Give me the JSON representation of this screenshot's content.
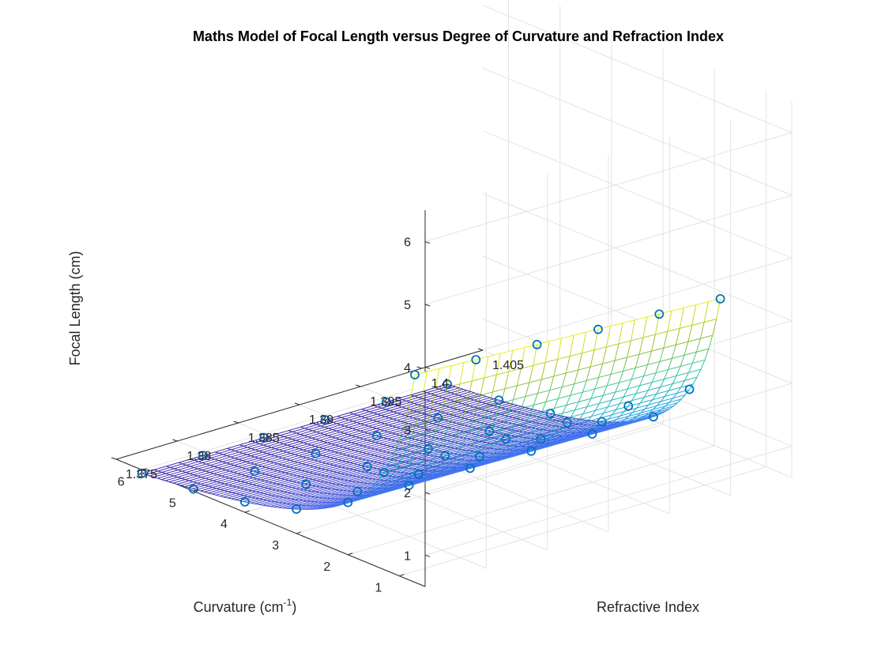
{
  "chart_data": {
    "type": "surface-mesh-with-scatter",
    "title": "Maths Model of Focal Length versus Degree of Curvature and Refraction Index",
    "xlabel": "Curvature (cm",
    "xlabel_superscript": "-1",
    "xlabel_suffix": ")",
    "ylabel": "Refractive Index",
    "zlabel": "Focal Length (cm)",
    "xlim": [
      0.5,
      6.5
    ],
    "ylim": [
      1.375,
      1.405
    ],
    "zlim": [
      0.5,
      6.5
    ],
    "x_ticks": [
      1,
      2,
      3,
      4,
      5,
      6
    ],
    "x_tick_labels": [
      "1",
      "2",
      "3",
      "4",
      "5",
      "6"
    ],
    "y_ticks": [
      1.375,
      1.38,
      1.385,
      1.39,
      1.395,
      1.4,
      1.405
    ],
    "y_tick_labels": [
      "1.375",
      "1.38",
      "1.385",
      "1.39",
      "1.395",
      "1.4",
      "1.405"
    ],
    "z_ticks": [
      1,
      2,
      3,
      4,
      5,
      6
    ],
    "z_tick_labels": [
      "1",
      "2",
      "3",
      "4",
      "5",
      "6"
    ],
    "grid": true,
    "colormap": "parula",
    "colormap_stops": [
      "#3e26a8",
      "#4772fa",
      "#1fa8db",
      "#30c7a0",
      "#a5be2c",
      "#f9fb15"
    ],
    "surface_formula": "focal_length = 1 / ((refractive_index - 1) * curvature)",
    "surface_x_range": [
      0.7,
      6.0
    ],
    "surface_y_range": [
      1.375,
      1.4
    ],
    "scatter_marker": "circle",
    "scatter_color": "#0072bd",
    "scatter_curvature": [
      0.7,
      1.3,
      2.0,
      3.0,
      4.0,
      5.0,
      6.0
    ],
    "scatter_refractive_index": [
      1.375,
      1.38,
      1.385,
      1.39,
      1.395,
      1.4
    ],
    "scatter_points_description": "Measured focal length at each curvature and refractive index combination"
  }
}
